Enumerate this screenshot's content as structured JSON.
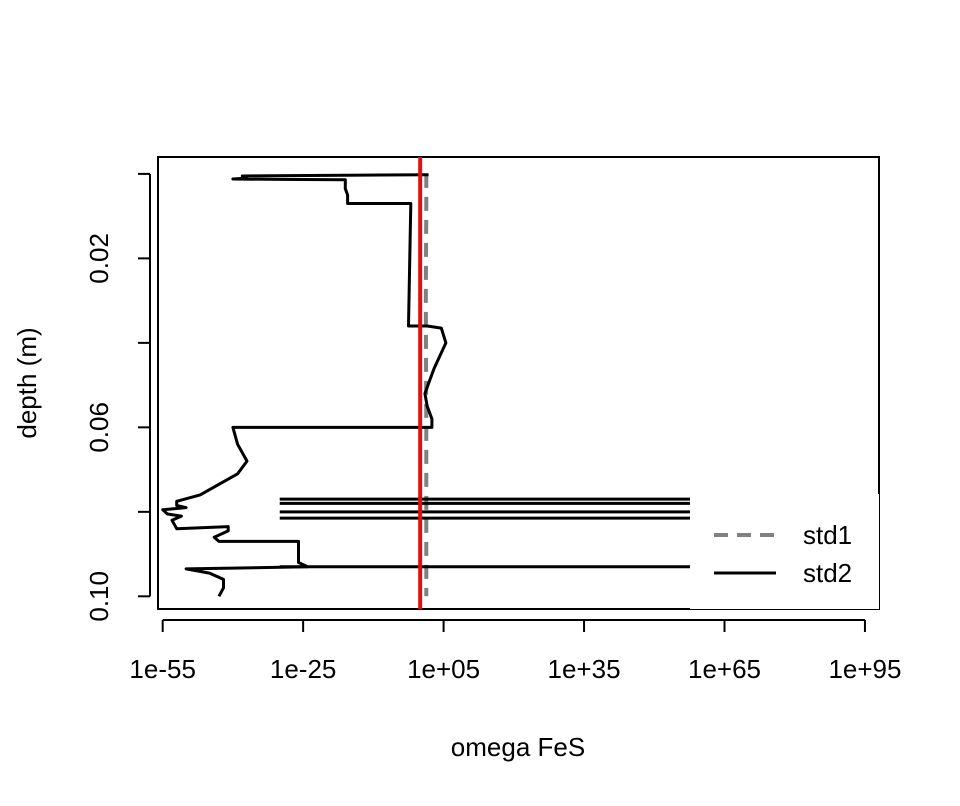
{
  "chart_data": {
    "type": "line",
    "title": "",
    "xlabel": "omega FeS",
    "ylabel": "depth (m)",
    "x_scale": "log10",
    "y_reversed": true,
    "xlim_log10": [
      -56,
      98
    ],
    "ylim": [
      0.103,
      -0.004
    ],
    "x_ticks": [
      {
        "log10": -55,
        "label": "1e-55"
      },
      {
        "log10": -25,
        "label": "1e-25"
      },
      {
        "log10": 5,
        "label": "1e+05"
      },
      {
        "log10": 35,
        "label": "1e+35"
      },
      {
        "log10": 65,
        "label": "1e+65"
      },
      {
        "log10": 95,
        "label": "1e+95"
      }
    ],
    "y_ticks": [
      {
        "value": 0.0,
        "label": ""
      },
      {
        "value": 0.02,
        "label": "0.02"
      },
      {
        "value": 0.04,
        "label": ""
      },
      {
        "value": 0.06,
        "label": "0.06"
      },
      {
        "value": 0.08,
        "label": ""
      },
      {
        "value": 0.1,
        "label": "0.10"
      }
    ],
    "reference_line": {
      "x_log10": 0,
      "color": "#e01010"
    },
    "legend": {
      "position": "bottom-right",
      "entries": [
        {
          "label": "std1",
          "color": "#808080",
          "dash": "dashed"
        },
        {
          "label": "std2",
          "color": "#000000",
          "dash": "solid"
        }
      ]
    },
    "series": [
      {
        "name": "std1",
        "color": "#808080",
        "dash": "dashed",
        "points": [
          [
            1.3,
            0.0
          ],
          [
            1.3,
            0.007
          ],
          [
            1.2,
            0.03
          ],
          [
            1.3,
            0.06
          ],
          [
            1.3,
            0.08
          ],
          [
            1.3,
            0.1
          ]
        ]
      },
      {
        "name": "std2",
        "color": "#000000",
        "dash": "solid",
        "points": [
          [
            1.8,
            0.0002
          ],
          [
            -38,
            0.0005
          ],
          [
            -37,
            0.001
          ],
          [
            -40,
            0.0012
          ],
          [
            -30,
            0.0013
          ],
          [
            -16,
            0.0014
          ],
          [
            -16,
            0.0035
          ],
          [
            -15.5,
            0.005
          ],
          [
            -15.5,
            0.007
          ],
          [
            -2,
            0.007
          ],
          [
            -2.5,
            0.036
          ],
          [
            1.5,
            0.036
          ],
          [
            4.5,
            0.0365
          ],
          [
            5.5,
            0.04
          ],
          [
            3,
            0.046
          ],
          [
            2,
            0.049
          ],
          [
            1,
            0.052
          ],
          [
            1.5,
            0.055
          ],
          [
            2.5,
            0.058
          ],
          [
            2.5,
            0.06
          ],
          [
            -40,
            0.06
          ],
          [
            -39,
            0.064
          ],
          [
            -37,
            0.068
          ],
          [
            -39,
            0.071
          ],
          [
            -47,
            0.076
          ],
          [
            -52,
            0.0775
          ],
          [
            -52,
            0.0785
          ],
          [
            -50,
            0.079
          ],
          [
            -55,
            0.0795
          ],
          [
            -54,
            0.0805
          ],
          [
            -51,
            0.081
          ],
          [
            -53,
            0.082
          ],
          [
            -52,
            0.084
          ],
          [
            -41,
            0.0835
          ],
          [
            -41,
            0.0845
          ],
          [
            -44,
            0.086
          ],
          [
            -43,
            0.087
          ],
          [
            -26,
            0.087
          ],
          [
            -26,
            0.092
          ],
          [
            -24,
            0.093
          ],
          [
            -50,
            0.0935
          ],
          [
            -45,
            0.0945
          ],
          [
            -42,
            0.096
          ],
          [
            -42,
            0.098
          ],
          [
            -43,
            0.1
          ]
        ]
      }
    ],
    "extended_segments": [
      {
        "y": 0.077
      },
      {
        "y": 0.078
      },
      {
        "y": 0.08
      },
      {
        "y": 0.0815
      },
      {
        "y": 0.093
      }
    ]
  }
}
